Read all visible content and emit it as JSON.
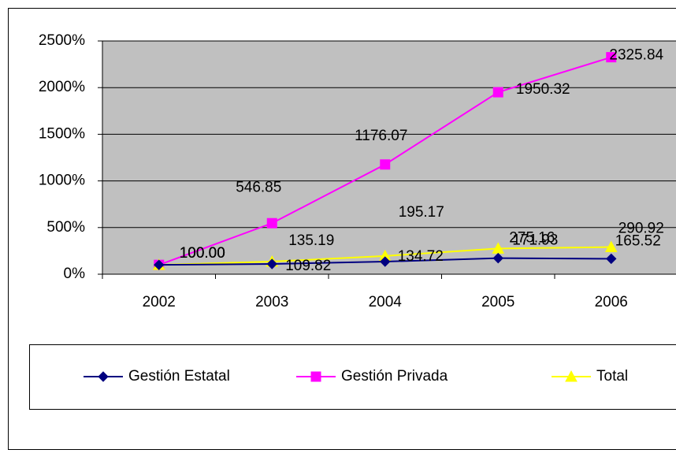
{
  "chart_data": {
    "type": "line",
    "categories": [
      "2002",
      "2003",
      "2004",
      "2005",
      "2006"
    ],
    "series": [
      {
        "name": "Gestión Estatal",
        "color": "#000080",
        "marker": "diamond",
        "values": [
          100,
          109.82,
          134.72,
          171.93,
          165.52
        ],
        "value_labels": [
          "100.00",
          "109.82",
          "134.72",
          "171.93",
          "165.52"
        ]
      },
      {
        "name": "Gestión Privada",
        "color": "#ff00ff",
        "marker": "square",
        "values": [
          100,
          546.85,
          1176.07,
          1950.32,
          2325.84
        ],
        "value_labels": [
          "100.00",
          "546.85",
          "1176.07",
          "1950.32",
          "2325.84"
        ]
      },
      {
        "name": "Total",
        "color": "#ffff00",
        "marker": "triangle",
        "values": [
          100,
          135.19,
          195.17,
          275.16,
          290.92
        ],
        "value_labels": [
          "100.00",
          "135.19",
          "195.17",
          "275.16",
          "290.92"
        ]
      }
    ],
    "ylim": [
      0,
      2500
    ],
    "yticks": [
      {
        "value": 0,
        "label": "0%"
      },
      {
        "value": 500,
        "label": "500%"
      },
      {
        "value": 1000,
        "label": "1000%"
      },
      {
        "value": 1500,
        "label": "1500%"
      },
      {
        "value": 2000,
        "label": "2000%"
      },
      {
        "value": 2500,
        "label": "2500%"
      }
    ],
    "grid": true,
    "legend": "bottom"
  }
}
